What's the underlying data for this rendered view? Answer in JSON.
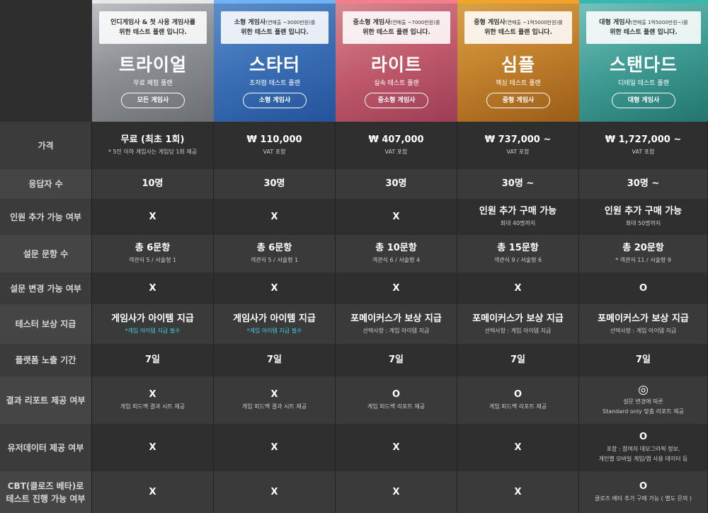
{
  "plans": [
    {
      "id": "trial",
      "name": "트라이얼",
      "subtitle": "무료 체험 플랜",
      "button": "모든 게임사",
      "desc_line1": "인디게임사 & 첫 사용 게임사를",
      "desc_line1_note": "",
      "desc_line2": "위한 테스트 플랜 입니다.",
      "accent": "#e8e8e8"
    },
    {
      "id": "starter",
      "name": "스타터",
      "subtitle": "초저렴 테스트 플랜",
      "button": "소형 게임사",
      "desc_line1": "소형 게임사",
      "desc_line1_note": "(연매출 ~3000만원)를",
      "desc_line2": "위한 테스트 플랜 입니다.",
      "accent": "#6fb2f5"
    },
    {
      "id": "lite",
      "name": "라이트",
      "subtitle": "실속 테스트 플랜",
      "button": "중소형 게임사",
      "desc_line1": "중소형 게임사",
      "desc_line1_note": "(연매출 ~7000만원)를",
      "desc_line2": "위한 테스트 플랜 입니다.",
      "accent": "#f47f8c"
    },
    {
      "id": "simple",
      "name": "심플",
      "subtitle": "핵심 테스트 플랜",
      "button": "중형 게임사",
      "desc_line1": "중형 게임사",
      "desc_line1_note": "(연매출 ~1억5000만원)를",
      "desc_line2": "위한 테스트 플랜 입니다.",
      "accent": "#f0a528"
    },
    {
      "id": "standard",
      "name": "스탠다드",
      "subtitle": "디테일 테스트 플랜",
      "button": "대형 게임사",
      "desc_line1": "대형 게임사",
      "desc_line1_note": "(연매출 1억5000만원~)를",
      "desc_line2": "위한 테스트 플랜 입니다.",
      "accent": "#37b7ad"
    }
  ],
  "rows": [
    {
      "label": "가격",
      "cells": [
        {
          "main": "무료 (최초 1회)",
          "sub": "* 5인 이하 게임사는 게임당 1회 제공"
        },
        {
          "main": "₩ 110,000",
          "sub": "VAT 포함"
        },
        {
          "main": "₩ 407,000",
          "sub": "VAT 포함"
        },
        {
          "main": "₩ 737,000 ~",
          "sub": "VAT 포함"
        },
        {
          "main": "₩ 1,727,000 ~",
          "sub": "VAT 포함"
        }
      ]
    },
    {
      "label": "응답자 수",
      "cells": [
        {
          "main": "10명"
        },
        {
          "main": "30명"
        },
        {
          "main": "30명"
        },
        {
          "main": "30명 ~"
        },
        {
          "main": "30명 ~"
        }
      ]
    },
    {
      "label": "인원 추가 가능 여부",
      "cells": [
        {
          "main": "X"
        },
        {
          "main": "X"
        },
        {
          "main": "X"
        },
        {
          "main": "인원 추가 구매 가능",
          "sub": "최대 40명까지"
        },
        {
          "main": "인원 추가 구매 가능",
          "sub": "최대 50명까지"
        }
      ]
    },
    {
      "label": "설문 문항 수",
      "cells": [
        {
          "main": "총 6문항",
          "sub": "객관식 5 / 서술형 1"
        },
        {
          "main": "총 6문항",
          "sub": "객관식 5 / 서술형 1"
        },
        {
          "main": "총 10문항",
          "sub": "객관식 6 / 서술형 4"
        },
        {
          "main": "총 15문항",
          "sub": "객관식 9 / 서술형 6"
        },
        {
          "main": "총 20문항",
          "sub": "* 객관식 11 / 서술형 9"
        }
      ]
    },
    {
      "label": "설문 변경 가능 여부",
      "cells": [
        {
          "main": "X"
        },
        {
          "main": "X"
        },
        {
          "main": "X"
        },
        {
          "main": "X"
        },
        {
          "main": "O"
        }
      ]
    },
    {
      "label": "테스터 보상 지급",
      "cells": [
        {
          "main": "게임사가 아이템 지급",
          "sub": "*게임 아이템 지급 필수",
          "highlight": true
        },
        {
          "main": "게임사가 아이템 지급",
          "sub": "*게임 아이템 지급 필수",
          "highlight": true
        },
        {
          "main": "포메이커스가 보상 지급",
          "sub": "선택사항 : 게임 아이템 지급"
        },
        {
          "main": "포메이커스가 보상 지급",
          "sub": "선택사항 : 게임 아이템 지급"
        },
        {
          "main": "포메이커스가 보상 지급",
          "sub": "선택사항 : 게임 아이템 지급"
        }
      ]
    },
    {
      "label": "플랫폼 노출 기간",
      "cells": [
        {
          "main": "7일"
        },
        {
          "main": "7일"
        },
        {
          "main": "7일"
        },
        {
          "main": "7일"
        },
        {
          "main": "7일"
        }
      ]
    },
    {
      "label": "결과 리포트 제공 여부",
      "cells": [
        {
          "main": "X",
          "sub": "게임 피드백 결과 시트 제공"
        },
        {
          "main": "X",
          "sub": "게임 피드백 결과 시트 제공"
        },
        {
          "main": "O",
          "sub": "게임 피드백 리포트 제공"
        },
        {
          "main": "O",
          "sub": "게임 피드백 리포트 제공"
        },
        {
          "main": "◎",
          "sub": "설문 변경에 따른",
          "sub2": "Standard only 맞춤 리포트 제공"
        }
      ]
    },
    {
      "label": "유저데이터 제공 여부",
      "cells": [
        {
          "main": "X"
        },
        {
          "main": "X"
        },
        {
          "main": "X"
        },
        {
          "main": "X"
        },
        {
          "main": "O",
          "sub": "포함 : 참여자 데모그라픽 정보,",
          "sub2": "개인별 모바일 게임/앱 사용 데이터 등"
        }
      ]
    },
    {
      "label": "CBT(클로즈 베타)로",
      "label2": "테스트 진행 가능 여부",
      "cells": [
        {
          "main": "X"
        },
        {
          "main": "X"
        },
        {
          "main": "X"
        },
        {
          "main": "X"
        },
        {
          "main": "O",
          "sub": "클로즈 베타 추가 구매 가능 ( 별도 문의 )"
        }
      ]
    }
  ]
}
